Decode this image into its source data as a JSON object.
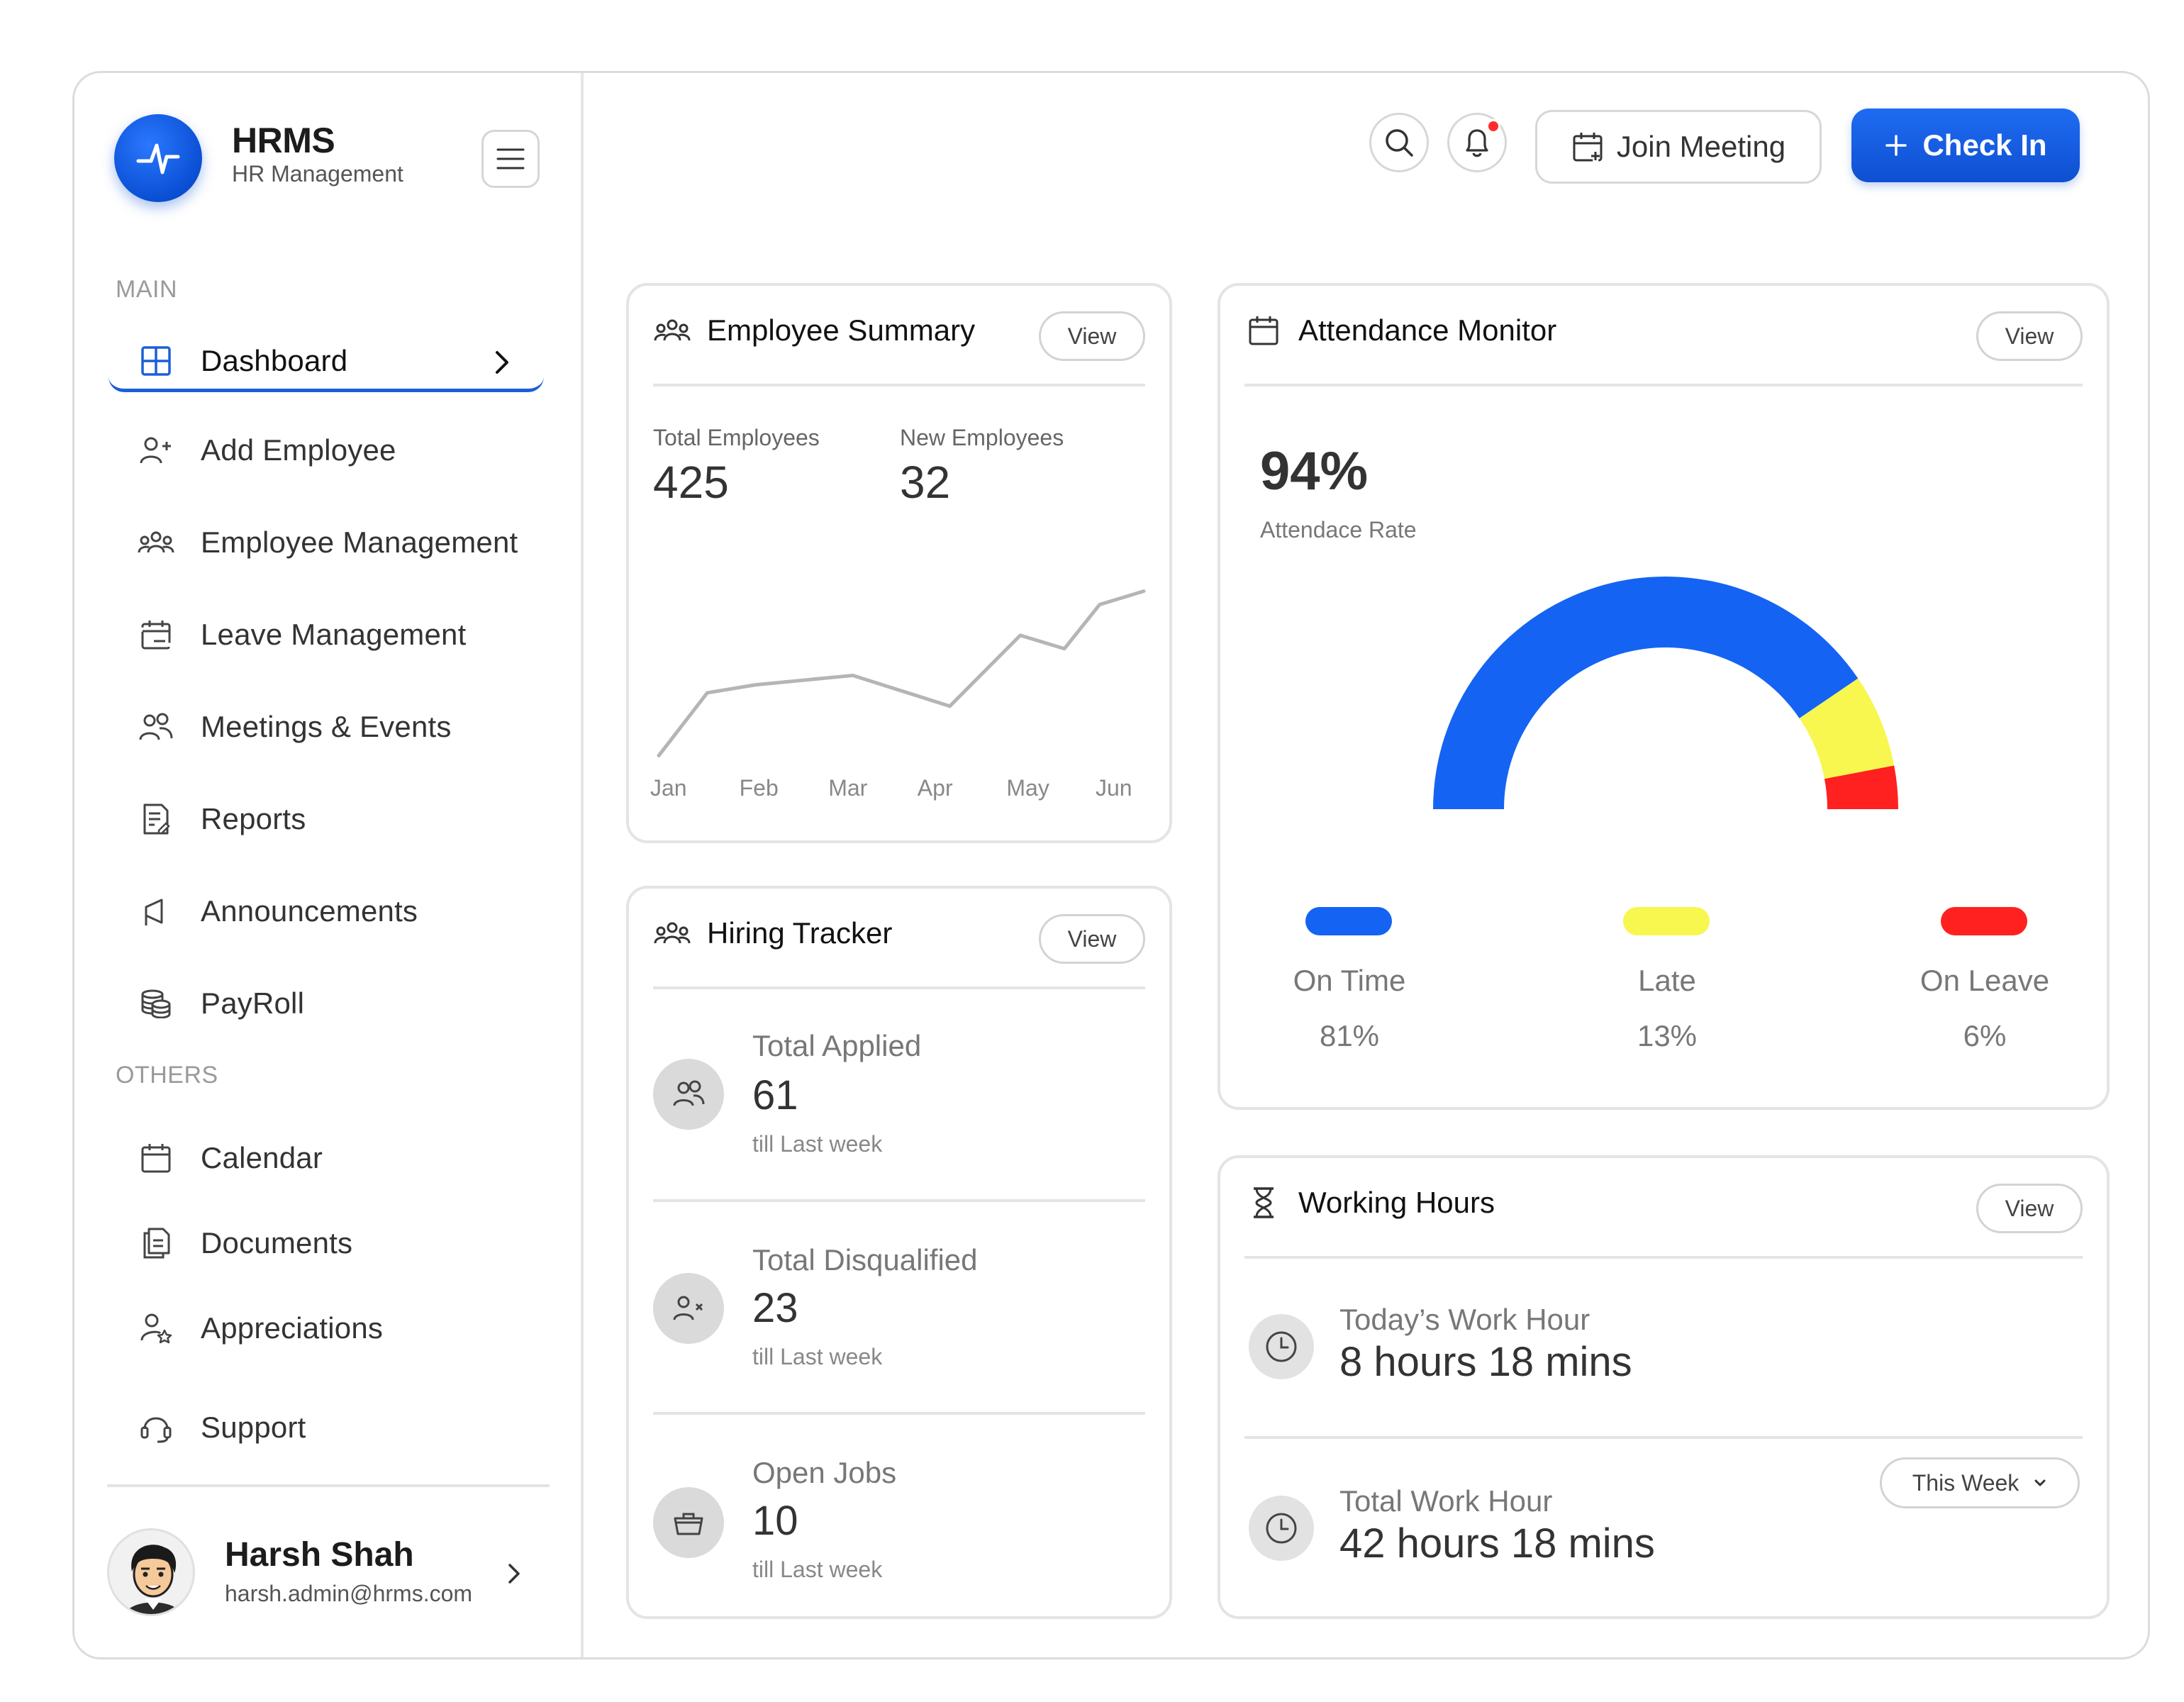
{
  "brand": {
    "title": "HRMS",
    "subtitle": "HR Management"
  },
  "sidebar": {
    "main_label": "MAIN",
    "others_label": "OTHERS",
    "main_items": [
      {
        "label": "Dashboard",
        "icon": "grid-icon",
        "active": true
      },
      {
        "label": "Add Employee",
        "icon": "user-plus-icon"
      },
      {
        "label": "Employee Management",
        "icon": "users-group-icon"
      },
      {
        "label": "Leave Management",
        "icon": "calendar-minus-icon"
      },
      {
        "label": "Meetings & Events",
        "icon": "users-icon"
      },
      {
        "label": "Reports",
        "icon": "report-icon"
      },
      {
        "label": "Announcements",
        "icon": "megaphone-icon"
      },
      {
        "label": "PayRoll",
        "icon": "coins-icon"
      }
    ],
    "other_items": [
      {
        "label": "Calendar",
        "icon": "calendar-icon"
      },
      {
        "label": "Documents",
        "icon": "documents-icon"
      },
      {
        "label": "Appreciations",
        "icon": "user-star-icon"
      },
      {
        "label": "Support",
        "icon": "headset-icon"
      }
    ]
  },
  "profile": {
    "name": "Harsh Shah",
    "email": "harsh.admin@hrms.com"
  },
  "topbar": {
    "join_label": "Join Meeting",
    "checkin_label": "Check In"
  },
  "employee_summary": {
    "title": "Employee Summary",
    "view_label": "View",
    "total_label": "Total Employees",
    "total_value": "425",
    "new_label": "New Employees",
    "new_value": "32"
  },
  "chart_data": {
    "type": "line",
    "categories": [
      "Jan",
      "Feb",
      "Mar",
      "Apr",
      "May",
      "Jun"
    ],
    "series": [
      {
        "values": [
          5,
          52,
          58,
          65,
          42,
          95,
          85,
          118,
          128
        ]
      }
    ],
    "x": [
      0,
      0.55,
      1.1,
      2.2,
      3.3,
      4.1,
      4.6,
      5.0,
      5.5
    ],
    "ylim": [
      0,
      140
    ],
    "grid": false
  },
  "hiring": {
    "title": "Hiring Tracker",
    "view_label": "View",
    "rows": [
      {
        "title": "Total Applied",
        "value": "61",
        "sub": "till Last week",
        "icon": "users-icon"
      },
      {
        "title": "Total Disqualified",
        "value": "23",
        "sub": "till Last week",
        "icon": "user-x-icon"
      },
      {
        "title": "Open Jobs",
        "value": "10",
        "sub": "till Last week",
        "icon": "briefcase-icon"
      }
    ]
  },
  "attendance": {
    "title": "Attendance Monitor",
    "view_label": "View",
    "rate": "94%",
    "rate_label": "Attendace Rate",
    "segments": [
      {
        "label": "On Time",
        "value": "81%",
        "fraction": 0.81,
        "color": "#1463f3"
      },
      {
        "label": "Late",
        "value": "13%",
        "fraction": 0.13,
        "color": "#f7f74f"
      },
      {
        "label": "On Leave",
        "value": "6%",
        "fraction": 0.06,
        "color": "#ff2020"
      }
    ]
  },
  "working_hours": {
    "title": "Working Hours",
    "view_label": "View",
    "today_label": "Today’s Work Hour",
    "today_value": "8 hours 18 mins",
    "total_label": "Total Work Hour",
    "total_value": "42 hours 18 mins",
    "period": "This Week"
  }
}
